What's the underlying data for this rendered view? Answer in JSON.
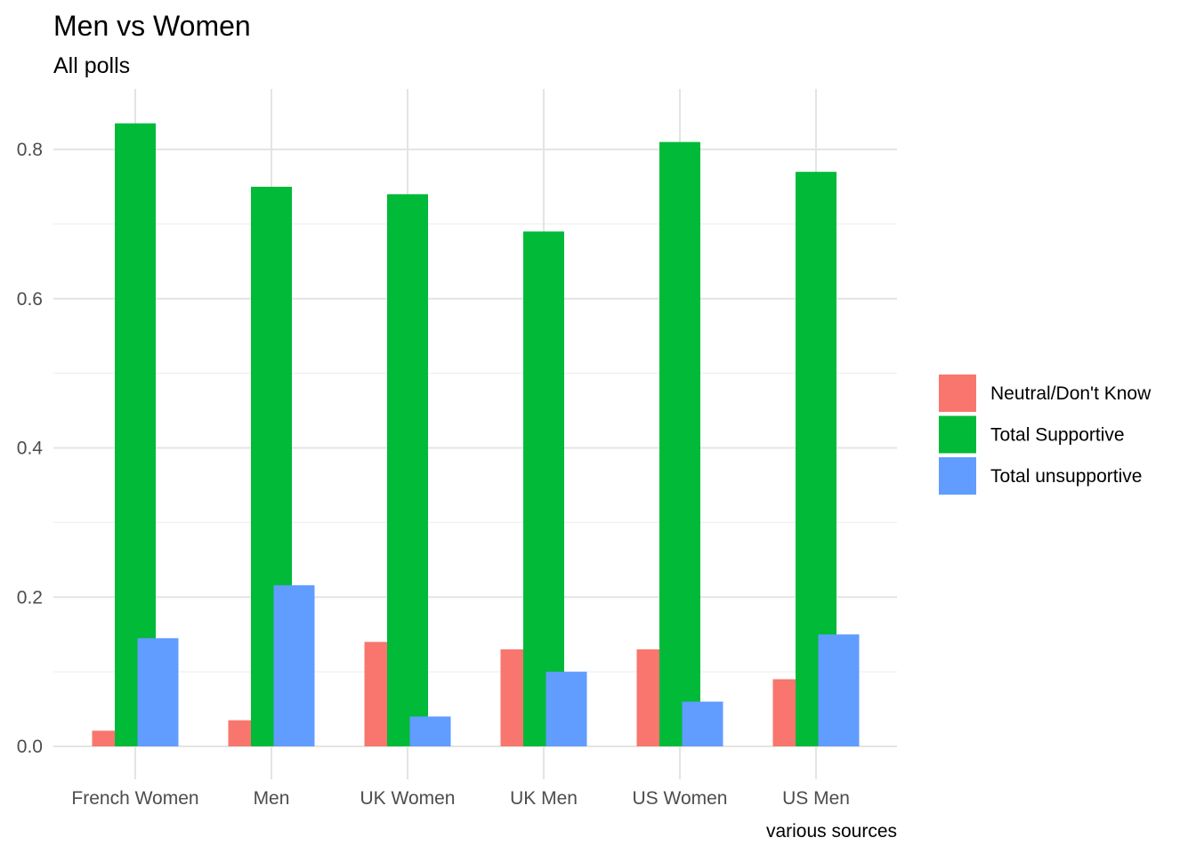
{
  "chart_data": {
    "type": "bar",
    "title": "Men vs Women",
    "subtitle": "All polls",
    "caption": "various sources",
    "xlabel": "",
    "ylabel": "",
    "categories": [
      "French Women",
      "Men",
      "UK Women",
      "UK Men",
      "US Women",
      "US Men"
    ],
    "ylim": [
      -0.04,
      0.875
    ],
    "yticks": [
      0.0,
      0.2,
      0.4,
      0.6,
      0.8
    ],
    "ytick_labels": [
      "0.0",
      "0.2",
      "0.4",
      "0.6",
      "0.8"
    ],
    "grid": true,
    "legend_position": "right",
    "series": [
      {
        "name": "Neutral/Don't Know",
        "color": "#F8766D",
        "values": [
          0.021,
          0.035,
          0.14,
          0.13,
          0.13,
          0.09
        ]
      },
      {
        "name": "Total Supportive",
        "color": "#00BA38",
        "values": [
          0.835,
          0.75,
          0.74,
          0.69,
          0.81,
          0.77
        ]
      },
      {
        "name": "Total unsupportive",
        "color": "#619CFF",
        "values": [
          0.145,
          0.216,
          0.04,
          0.1,
          0.06,
          0.15
        ]
      }
    ]
  }
}
